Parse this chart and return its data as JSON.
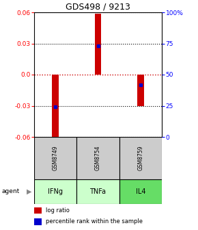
{
  "title": "GDS498 / 9213",
  "samples": [
    "GSM8749",
    "GSM8754",
    "GSM8759"
  ],
  "agents": [
    "IFNg",
    "TNFa",
    "IL4"
  ],
  "log_ratios": [
    -0.063,
    0.059,
    -0.03
  ],
  "percentile_ranks": [
    24,
    73,
    42
  ],
  "ylim": [
    -0.06,
    0.06
  ],
  "yticks_left": [
    -0.06,
    -0.03,
    0.0,
    0.03,
    0.06
  ],
  "yticks_right": [
    0,
    25,
    50,
    75,
    100
  ],
  "bar_color": "#cc0000",
  "pct_color": "#0000cc",
  "zero_line_color": "#cc0000",
  "sample_bg_color": "#cccccc",
  "agent_bg_colors": [
    "#ccffcc",
    "#ccffcc",
    "#66dd66"
  ],
  "legend_bar_color": "#cc0000",
  "legend_pct_color": "#0000cc",
  "title_fontsize": 9
}
